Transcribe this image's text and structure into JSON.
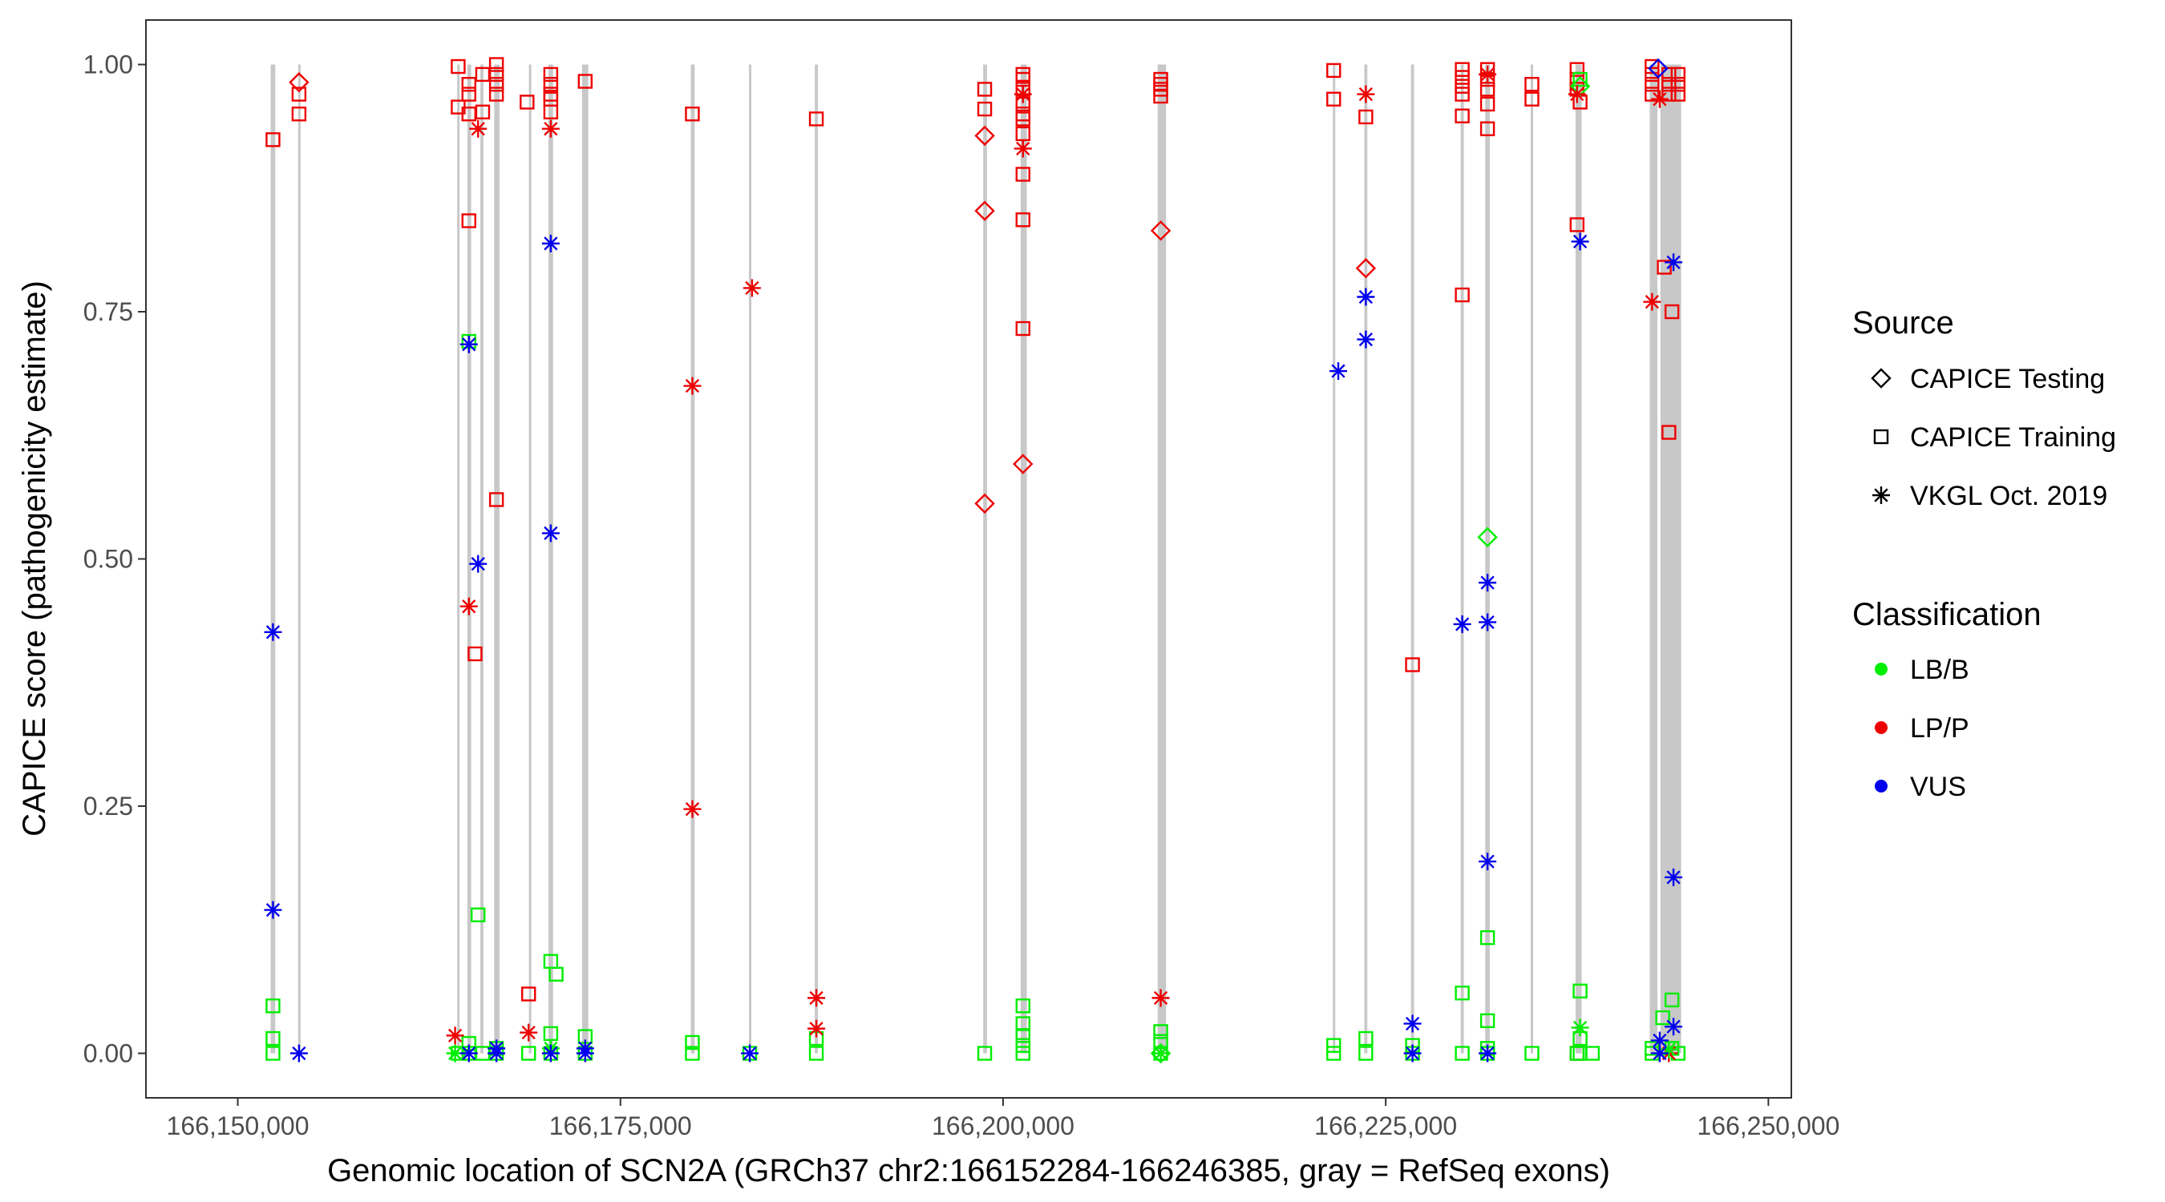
{
  "chart_data": {
    "type": "scatter",
    "xlabel": "Genomic location of SCN2A (GRCh37 chr2:166152284-166246385, gray = RefSeq exons)",
    "ylabel": "CAPICE score (pathogenicity estimate)",
    "xlim": [
      166144000,
      166251500
    ],
    "ylim": [
      -0.045,
      1.045
    ],
    "x_ticks": [
      166150000,
      166175000,
      166200000,
      166225000,
      166250000
    ],
    "x_tick_labels": [
      "166,150,000",
      "166,175,000",
      "166,200,000",
      "166,225,000",
      "166,250,000"
    ],
    "y_ticks": [
      0,
      0.25,
      0.5,
      0.75,
      1.0
    ],
    "y_tick_labels": [
      "0.00",
      "0.25",
      "0.50",
      "0.75",
      "1.00"
    ],
    "exons": [
      [
        166152150,
        166152450
      ],
      [
        166153950,
        166154100
      ],
      [
        166164350,
        166164480
      ],
      [
        166165000,
        166165250
      ],
      [
        166165850,
        166166050
      ],
      [
        166166750,
        166167100
      ],
      [
        166169050,
        166169150
      ],
      [
        166170300,
        166170600
      ],
      [
        166172500,
        166172900
      ],
      [
        166179600,
        166179850
      ],
      [
        166183400,
        166183550
      ],
      [
        166187700,
        166187900
      ],
      [
        166198700,
        166198950
      ],
      [
        166201150,
        166201550
      ],
      [
        166210100,
        166210650
      ],
      [
        166221550,
        166221700
      ],
      [
        166223600,
        166223800
      ],
      [
        166226650,
        166226850
      ],
      [
        166229900,
        166230100
      ],
      [
        166231500,
        166231800
      ],
      [
        166234500,
        166234600
      ],
      [
        166237400,
        166237800
      ],
      [
        166242250,
        166242750
      ],
      [
        166242950,
        166244300
      ]
    ],
    "legend": {
      "source_title": "Source",
      "sources": [
        {
          "name": "CAPICE Testing",
          "shape": "diamond"
        },
        {
          "name": "CAPICE Training",
          "shape": "square"
        },
        {
          "name": "VKGL Oct. 2019",
          "shape": "star"
        }
      ],
      "class_title": "Classification",
      "classes": [
        {
          "name": "LB/B",
          "color": "#00ee00"
        },
        {
          "name": "LP/P",
          "color": "#ee0000"
        },
        {
          "name": "VUS",
          "color": "#0000ee"
        }
      ]
    },
    "series": [
      {
        "name": "CAPICE Training / LP/P",
        "shape": "square",
        "color": "#ee0000",
        "points": [
          [
            166152300,
            0.924
          ],
          [
            166154000,
            0.95
          ],
          [
            166154000,
            0.97
          ],
          [
            166164400,
            0.998
          ],
          [
            166164400,
            0.957
          ],
          [
            166165100,
            0.98
          ],
          [
            166165100,
            0.97
          ],
          [
            166165100,
            0.95
          ],
          [
            166165100,
            0.842
          ],
          [
            166165500,
            0.404
          ],
          [
            166166000,
            0.99
          ],
          [
            166166000,
            0.952
          ],
          [
            166166900,
            1.0
          ],
          [
            166166900,
            0.99
          ],
          [
            166166900,
            0.98
          ],
          [
            166166900,
            0.97
          ],
          [
            166166900,
            0.56
          ],
          [
            166168900,
            0.962
          ],
          [
            166169000,
            0.06
          ],
          [
            166170450,
            0.99
          ],
          [
            166170450,
            0.98
          ],
          [
            166170450,
            0.97
          ],
          [
            166170450,
            0.965
          ],
          [
            166170450,
            0.952
          ],
          [
            166172700,
            0.983
          ],
          [
            166179700,
            0.95
          ],
          [
            166187800,
            0.945
          ],
          [
            166198800,
            0.975
          ],
          [
            166198800,
            0.955
          ],
          [
            166201300,
            0.99
          ],
          [
            166201300,
            0.985
          ],
          [
            166201300,
            0.975
          ],
          [
            166201300,
            0.96
          ],
          [
            166201300,
            0.95
          ],
          [
            166201300,
            0.945
          ],
          [
            166201300,
            0.93
          ],
          [
            166201300,
            0.889
          ],
          [
            166201300,
            0.843
          ],
          [
            166201300,
            0.733
          ],
          [
            166210300,
            0.985
          ],
          [
            166210300,
            0.98
          ],
          [
            166210300,
            0.975
          ],
          [
            166210300,
            0.968
          ],
          [
            166221600,
            0.994
          ],
          [
            166221600,
            0.965
          ],
          [
            166223700,
            0.947
          ],
          [
            166226750,
            0.393
          ],
          [
            166230000,
            0.995
          ],
          [
            166230000,
            0.987
          ],
          [
            166230000,
            0.978
          ],
          [
            166230000,
            0.97
          ],
          [
            166230000,
            0.948
          ],
          [
            166230000,
            0.767
          ],
          [
            166231650,
            0.995
          ],
          [
            166231650,
            0.985
          ],
          [
            166231650,
            0.975
          ],
          [
            166231650,
            0.96
          ],
          [
            166231650,
            0.935
          ],
          [
            166234550,
            0.98
          ],
          [
            166234550,
            0.965
          ],
          [
            166237500,
            0.995
          ],
          [
            166237500,
            0.985
          ],
          [
            166237500,
            0.975
          ],
          [
            166237500,
            0.838
          ],
          [
            166237500,
            0.0
          ],
          [
            166237700,
            0.962
          ],
          [
            166242400,
            0.998
          ],
          [
            166242400,
            0.99
          ],
          [
            166242400,
            0.98
          ],
          [
            166242400,
            0.97
          ],
          [
            166243200,
            0.795
          ],
          [
            166243500,
            0.99
          ],
          [
            166243500,
            0.98
          ],
          [
            166243500,
            0.97
          ],
          [
            166243500,
            0.628
          ],
          [
            166243700,
            0.75
          ],
          [
            166244100,
            0.99
          ],
          [
            166244100,
            0.98
          ],
          [
            166244100,
            0.97
          ]
        ]
      },
      {
        "name": "CAPICE Training / LB/B",
        "shape": "square",
        "color": "#00ee00",
        "points": [
          [
            166152300,
            0.048
          ],
          [
            166152300,
            0.015
          ],
          [
            166152300,
            0.0
          ],
          [
            166164400,
            0.0
          ],
          [
            166165100,
            0.72
          ],
          [
            166165100,
            0.01
          ],
          [
            166165100,
            0.0
          ],
          [
            166165700,
            0.14
          ],
          [
            166166000,
            0.0
          ],
          [
            166166900,
            0.005
          ],
          [
            166166900,
            0.0
          ],
          [
            166169000,
            0.0
          ],
          [
            166170450,
            0.093
          ],
          [
            166170450,
            0.02
          ],
          [
            166170450,
            0.0
          ],
          [
            166170800,
            0.08
          ],
          [
            166172700,
            0.017
          ],
          [
            166172700,
            0.0
          ],
          [
            166179700,
            0.011
          ],
          [
            166179700,
            0.0
          ],
          [
            166183450,
            0.0
          ],
          [
            166187800,
            0.015
          ],
          [
            166187800,
            0.0
          ],
          [
            166198800,
            0.0
          ],
          [
            166201300,
            0.048
          ],
          [
            166201300,
            0.03
          ],
          [
            166201300,
            0.018
          ],
          [
            166201300,
            0.008
          ],
          [
            166201300,
            0.0
          ],
          [
            166210300,
            0.022
          ],
          [
            166210300,
            0.012
          ],
          [
            166210300,
            0.0
          ],
          [
            166221600,
            0.008
          ],
          [
            166221600,
            0.0
          ],
          [
            166223700,
            0.015
          ],
          [
            166223700,
            0.0
          ],
          [
            166226750,
            0.008
          ],
          [
            166226750,
            0.0
          ],
          [
            166230000,
            0.061
          ],
          [
            166230000,
            0.0
          ],
          [
            166231650,
            0.117
          ],
          [
            166231650,
            0.033
          ],
          [
            166231650,
            0.005
          ],
          [
            166231650,
            0.0
          ],
          [
            166234550,
            0.0
          ],
          [
            166237500,
            0.0
          ],
          [
            166237700,
            0.985
          ],
          [
            166237700,
            0.063
          ],
          [
            166237700,
            0.015
          ],
          [
            166237700,
            0.0
          ],
          [
            166238500,
            0.0
          ],
          [
            166242400,
            0.005
          ],
          [
            166242400,
            0.0
          ],
          [
            166243100,
            0.036
          ],
          [
            166243700,
            0.054
          ],
          [
            166243700,
            0.005
          ],
          [
            166244100,
            0.0
          ]
        ]
      },
      {
        "name": "CAPICE Testing / LP/P",
        "shape": "diamond",
        "color": "#ee0000",
        "points": [
          [
            166154000,
            0.982
          ],
          [
            166198800,
            0.928
          ],
          [
            166198800,
            0.852
          ],
          [
            166198800,
            0.556
          ],
          [
            166201300,
            0.596
          ],
          [
            166210300,
            0.832
          ],
          [
            166223700,
            0.794
          ]
        ]
      },
      {
        "name": "CAPICE Testing / LB/B",
        "shape": "diamond",
        "color": "#00ee00",
        "points": [
          [
            166231650,
            0.522
          ],
          [
            166237700,
            0.978
          ],
          [
            166210300,
            0.0
          ]
        ]
      },
      {
        "name": "CAPICE Testing / VUS",
        "shape": "diamond",
        "color": "#0000ee",
        "points": [
          [
            166242800,
            0.996
          ]
        ]
      },
      {
        "name": "VKGL Oct. 2019 / LP/P",
        "shape": "star",
        "color": "#ee0000",
        "points": [
          [
            166164200,
            0.018
          ],
          [
            166165100,
            0.452
          ],
          [
            166165700,
            0.935
          ],
          [
            166169000,
            0.021
          ],
          [
            166170450,
            0.935
          ],
          [
            166179700,
            0.675
          ],
          [
            166179700,
            0.247
          ],
          [
            166183600,
            0.774
          ],
          [
            166187800,
            0.056
          ],
          [
            166187800,
            0.025
          ],
          [
            166201300,
            0.97
          ],
          [
            166201300,
            0.915
          ],
          [
            166210300,
            0.056
          ],
          [
            166223700,
            0.97
          ],
          [
            166231650,
            0.99
          ],
          [
            166237500,
            0.97
          ],
          [
            166242400,
            0.76
          ],
          [
            166242900,
            0.965
          ],
          [
            166243500,
            0.0
          ]
        ]
      },
      {
        "name": "VKGL Oct. 2019 / LB/B",
        "shape": "star",
        "color": "#00ee00",
        "points": [
          [
            166164200,
            0.0
          ],
          [
            166170450,
            0.005
          ],
          [
            166210300,
            0.0
          ],
          [
            166237700,
            0.026
          ],
          [
            166243500,
            0.004
          ]
        ]
      },
      {
        "name": "VKGL Oct. 2019 / VUS",
        "shape": "star",
        "color": "#0000ee",
        "points": [
          [
            166152300,
            0.426
          ],
          [
            166152300,
            0.145
          ],
          [
            166154000,
            0.0
          ],
          [
            166165100,
            0.717
          ],
          [
            166165100,
            0.0
          ],
          [
            166165700,
            0.495
          ],
          [
            166166900,
            0.005
          ],
          [
            166166900,
            0.0
          ],
          [
            166170450,
            0.819
          ],
          [
            166170450,
            0.526
          ],
          [
            166170450,
            0.0
          ],
          [
            166172700,
            0.005
          ],
          [
            166172700,
            0.0
          ],
          [
            166183450,
            0.0
          ],
          [
            166221900,
            0.69
          ],
          [
            166223700,
            0.765
          ],
          [
            166223700,
            0.722
          ],
          [
            166226750,
            0.03
          ],
          [
            166226750,
            0.0
          ],
          [
            166230000,
            0.434
          ],
          [
            166231650,
            0.476
          ],
          [
            166231650,
            0.436
          ],
          [
            166231650,
            0.194
          ],
          [
            166231650,
            0.0
          ],
          [
            166237700,
            0.821
          ],
          [
            166242900,
            0.013
          ],
          [
            166242900,
            0.0
          ],
          [
            166243800,
            0.8
          ],
          [
            166243800,
            0.178
          ],
          [
            166243800,
            0.027
          ]
        ]
      }
    ]
  }
}
